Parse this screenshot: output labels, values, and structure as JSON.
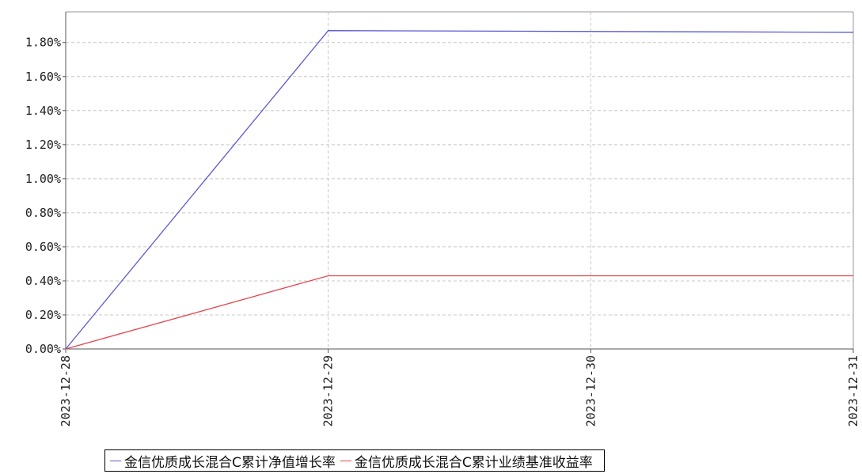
{
  "chart_data": {
    "type": "line",
    "x": [
      "2023-12-28",
      "2023-12-29",
      "2023-12-30",
      "2023-12-31"
    ],
    "ylim": [
      0,
      1.98
    ],
    "y_ticks": [
      0.0,
      0.2,
      0.4,
      0.6,
      0.8,
      1.0,
      1.2,
      1.4,
      1.6,
      1.8
    ],
    "y_tick_labels": [
      "0.00%",
      "0.20%",
      "0.40%",
      "0.60%",
      "0.80%",
      "1.00%",
      "1.20%",
      "1.40%",
      "1.60%",
      "1.80%"
    ],
    "grid": true,
    "legend_position": "bottom",
    "series": [
      {
        "name": "金信优质成长混合C累计净值增长率",
        "color": "#5b5bd6",
        "x": [
          "2023-12-28",
          "2023-12-29",
          "2023-12-31"
        ],
        "values": [
          0.0,
          1.87,
          1.86
        ]
      },
      {
        "name": "金信优质成长混合C累计业绩基准收益率",
        "color": "#e0474c",
        "x": [
          "2023-12-28",
          "2023-12-29",
          "2023-12-31"
        ],
        "values": [
          0.0,
          0.43,
          0.43
        ]
      }
    ]
  }
}
